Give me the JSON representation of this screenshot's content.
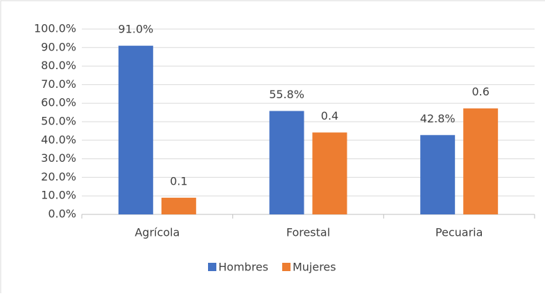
{
  "chart_data": {
    "type": "bar",
    "categories": [
      "Agrícola",
      "Forestal",
      "Pecuaria"
    ],
    "series": [
      {
        "name": "Hombres",
        "color": "#4472c4",
        "values": [
          91.0,
          55.8,
          42.8
        ],
        "value_labels": [
          "91.0%",
          "55.8%",
          "42.8%"
        ]
      },
      {
        "name": "Mujeres",
        "color": "#ed7d31",
        "values": [
          9.0,
          44.2,
          57.2
        ],
        "value_labels": [
          "0.1",
          "0.4",
          "0.6"
        ]
      }
    ],
    "ylim": [
      0,
      100
    ],
    "yticks": [
      {
        "value": 0,
        "label": "0.0%"
      },
      {
        "value": 10,
        "label": "10.0%"
      },
      {
        "value": 20,
        "label": "20.0%"
      },
      {
        "value": 30,
        "label": "30.0%"
      },
      {
        "value": 40,
        "label": "40.0%"
      },
      {
        "value": 50,
        "label": "50.0%"
      },
      {
        "value": 60,
        "label": "60.0%"
      },
      {
        "value": 70,
        "label": "70.0%"
      },
      {
        "value": 80,
        "label": "80.0%"
      },
      {
        "value": 90,
        "label": "90.0%"
      },
      {
        "value": 100,
        "label": "100.0%"
      }
    ],
    "grid": true,
    "legend": "bottom"
  }
}
